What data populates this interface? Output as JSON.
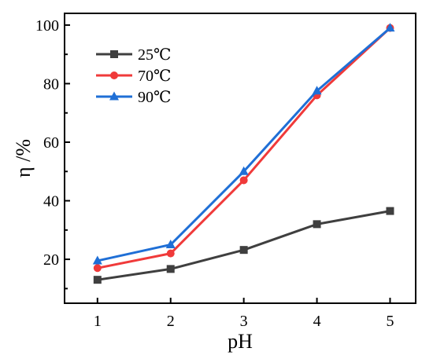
{
  "chart_data": {
    "type": "line",
    "title": "",
    "xlabel": "pH",
    "ylabel": "η /%",
    "x": [
      1,
      2,
      3,
      4,
      5
    ],
    "xlim": [
      0.55,
      5.35
    ],
    "ylim": [
      5,
      104
    ],
    "xticks": [
      1,
      2,
      3,
      4,
      5
    ],
    "yticks": [
      20,
      40,
      60,
      80,
      100
    ],
    "grid": false,
    "legend_position": "top-left",
    "series": [
      {
        "name": "25℃",
        "values": [
          13,
          16.7,
          23.2,
          32,
          36.5
        ],
        "color": "#3f3f3f",
        "marker": "square"
      },
      {
        "name": "70℃",
        "values": [
          17,
          22,
          47,
          76,
          99
        ],
        "color": "#f03a3a",
        "marker": "circle"
      },
      {
        "name": "90℃",
        "values": [
          19.5,
          25,
          50,
          77.5,
          99
        ],
        "color": "#1f6fd6",
        "marker": "triangle"
      }
    ]
  }
}
